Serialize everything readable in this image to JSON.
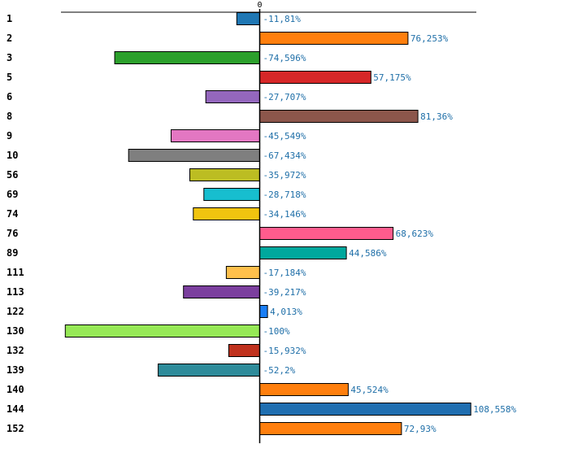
{
  "chart_data": {
    "type": "bar",
    "orientation": "horizontal",
    "zero_label": "0",
    "xlim": [
      -100,
      108.558
    ],
    "categories": [
      "1",
      "2",
      "3",
      "5",
      "6",
      "8",
      "9",
      "10",
      "56",
      "69",
      "74",
      "76",
      "89",
      "111",
      "113",
      "122",
      "130",
      "132",
      "139",
      "140",
      "144",
      "152"
    ],
    "values": [
      -11.81,
      76.253,
      -74.596,
      57.175,
      -27.707,
      81.36,
      -45.549,
      -67.434,
      -35.972,
      -28.718,
      -34.146,
      68.623,
      44.586,
      -17.184,
      -39.217,
      4.013,
      -100,
      -15.932,
      -52.2,
      45.524,
      108.558,
      72.93
    ],
    "value_labels": [
      "-11,81%",
      "76,253%",
      "-74,596%",
      "57,175%",
      "-27,707%",
      "81,36%",
      "-45,549%",
      "-67,434%",
      "-35,972%",
      "-28,718%",
      "-34,146%",
      "68,623%",
      "44,586%",
      "-17,184%",
      "-39,217%",
      "4,013%",
      "-100%",
      "-15,932%",
      "-52,2%",
      "45,524%",
      "108,558%",
      "72,93%"
    ],
    "colors": [
      "#1f77b4",
      "#ff7f0e",
      "#2ca02c",
      "#d62728",
      "#9467bd",
      "#8c564b",
      "#e377c2",
      "#7f7f7f",
      "#bcbd22",
      "#17becf",
      "#f1c40f",
      "#ff5c8d",
      "#00a89d",
      "#ffc04c",
      "#7b3f9e",
      "#1a7ef5",
      "#96e856",
      "#c0321e",
      "#2e8b9a",
      "#ff7f0e",
      "#1f6eb0",
      "#ff7f0e"
    ]
  }
}
